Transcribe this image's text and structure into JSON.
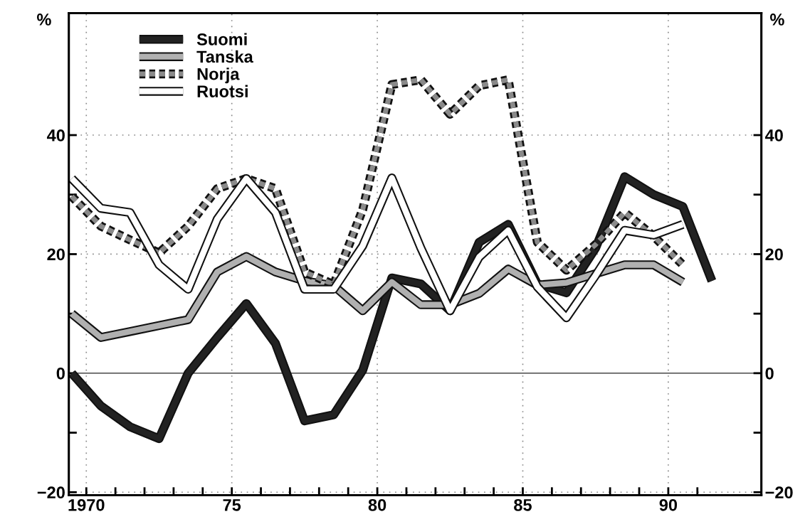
{
  "chart_data": {
    "type": "line",
    "ylabel": "%",
    "y2label": "%",
    "x": [
      1969.5,
      1970.5,
      1971.5,
      1972.5,
      1973.5,
      1974.5,
      1975.5,
      1976.5,
      1977.5,
      1978.5,
      1979.5,
      1980.5,
      1981.5,
      1982.5,
      1983.5,
      1984.5,
      1985.5,
      1986.5,
      1987.5,
      1988.5,
      1989.5,
      1990.5,
      1991.5
    ],
    "series": [
      {
        "name": "Suomi",
        "color": "#222222",
        "line_style": "solid",
        "values": [
          0,
          -5.5,
          -9,
          -11,
          0,
          6,
          11.7,
          5,
          -8,
          -7,
          0.5,
          16,
          15,
          10.5,
          22,
          25,
          15,
          13.5,
          21,
          33,
          30,
          28,
          15.5
        ]
      },
      {
        "name": "Tanska",
        "color": "#b0b0b0",
        "line_style": "solid",
        "values": [
          10,
          6,
          7,
          8,
          9,
          17,
          19.6,
          17,
          15.5,
          14.7,
          10.5,
          15.3,
          11.5,
          11.5,
          13.4,
          17.5,
          14.8,
          15.2,
          16.7,
          18.2,
          18.2,
          15.3,
          null
        ]
      },
      {
        "name": "Norja",
        "color": "#8a8a8a",
        "line_style": "dashed",
        "values": [
          29.7,
          24.7,
          22.4,
          20.2,
          24.7,
          31,
          32.7,
          31,
          17,
          14.9,
          27.5,
          48.5,
          49.3,
          43.5,
          48.3,
          49.3,
          22,
          17.3,
          21.6,
          27,
          23,
          18.2,
          null
        ]
      },
      {
        "name": "Ruotsi",
        "color": "#ffffff",
        "line_style": "solid",
        "values": [
          32.7,
          27.7,
          27,
          18.2,
          14.1,
          25.9,
          32.7,
          27,
          14.1,
          14.1,
          21.4,
          32.8,
          21,
          10.5,
          19.5,
          24,
          14.5,
          9.3,
          16.4,
          24,
          23.2,
          25,
          null
        ]
      }
    ],
    "xlim": [
      1969.4,
      1993.2
    ],
    "xticks": [
      {
        "value": 1970,
        "label": "1970"
      },
      {
        "value": 1971,
        "label": null
      },
      {
        "value": 1972,
        "label": null
      },
      {
        "value": 1973,
        "label": null
      },
      {
        "value": 1974,
        "label": null
      },
      {
        "value": 1975,
        "label": "75"
      },
      {
        "value": 1976,
        "label": null
      },
      {
        "value": 1977,
        "label": null
      },
      {
        "value": 1978,
        "label": null
      },
      {
        "value": 1979,
        "label": null
      },
      {
        "value": 1980,
        "label": "80"
      },
      {
        "value": 1981,
        "label": null
      },
      {
        "value": 1982,
        "label": null
      },
      {
        "value": 1983,
        "label": null
      },
      {
        "value": 1984,
        "label": null
      },
      {
        "value": 1985,
        "label": "85"
      },
      {
        "value": 1986,
        "label": null
      },
      {
        "value": 1987,
        "label": null
      },
      {
        "value": 1988,
        "label": null
      },
      {
        "value": 1989,
        "label": null
      },
      {
        "value": 1990,
        "label": "90"
      },
      {
        "value": 1991,
        "label": null
      }
    ],
    "ylim": [
      -20.5,
      60.5
    ],
    "yticks": [
      {
        "value": -20,
        "label": "−20"
      },
      {
        "value": -10,
        "label": null
      },
      0,
      {
        "value": 10,
        "label": null
      },
      20,
      {
        "value": 30,
        "label": null
      },
      40
    ],
    "y2lim": [
      -20.5,
      60.5
    ],
    "y2ticks": [
      {
        "value": -20,
        "label": "−20"
      },
      {
        "value": -10,
        "label": null
      },
      0,
      {
        "value": 10,
        "label": null
      },
      20,
      {
        "value": 30,
        "label": null
      },
      40
    ],
    "ref_lines": [
      {
        "axis": "y",
        "value": 0,
        "color": "#222222",
        "line_style": "solid"
      }
    ],
    "grid": true,
    "legend": "top left",
    "marker": "none"
  }
}
